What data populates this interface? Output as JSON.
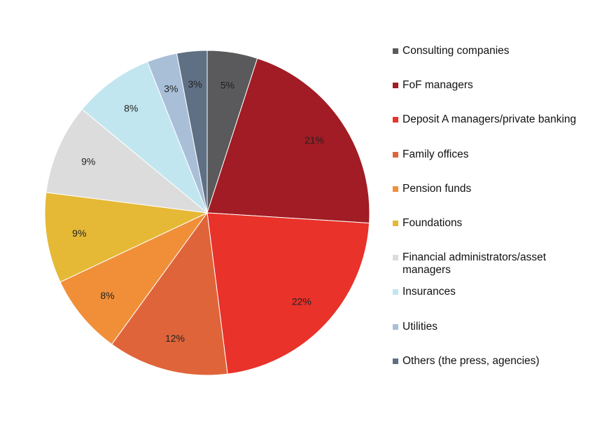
{
  "chart_data": {
    "type": "pie",
    "title": "",
    "legend_position": "right",
    "slices": [
      {
        "label": "Consulting companies",
        "value": 5,
        "value_label": "5%",
        "color": "#5a5a5c"
      },
      {
        "label": "FoF managers",
        "value": 21,
        "value_label": "21%",
        "color": "#a11c24"
      },
      {
        "label": "Deposit A managers/private banking",
        "value": 22,
        "value_label": "22%",
        "color": "#e8322a"
      },
      {
        "label": "Family offices",
        "value": 12,
        "value_label": "12%",
        "color": "#e0643a"
      },
      {
        "label": "Pension funds",
        "value": 8,
        "value_label": "8%",
        "color": "#f18f38"
      },
      {
        "label": "Foundations",
        "value": 9,
        "value_label": "9%",
        "color": "#e5b936"
      },
      {
        "label": "Financial administrators/asset managers",
        "value": 9,
        "value_label": "9%",
        "color": "#dcdcdc"
      },
      {
        "label": "Insurances",
        "value": 8,
        "value_label": "8%",
        "color": "#c2e6ef"
      },
      {
        "label": "Utilities",
        "value": 3,
        "value_label": "3%",
        "color": "#a9bfd8"
      },
      {
        "label": "Others (the press, agencies)",
        "value": 3,
        "value_label": "3%",
        "color": "#5f6f84"
      }
    ]
  }
}
